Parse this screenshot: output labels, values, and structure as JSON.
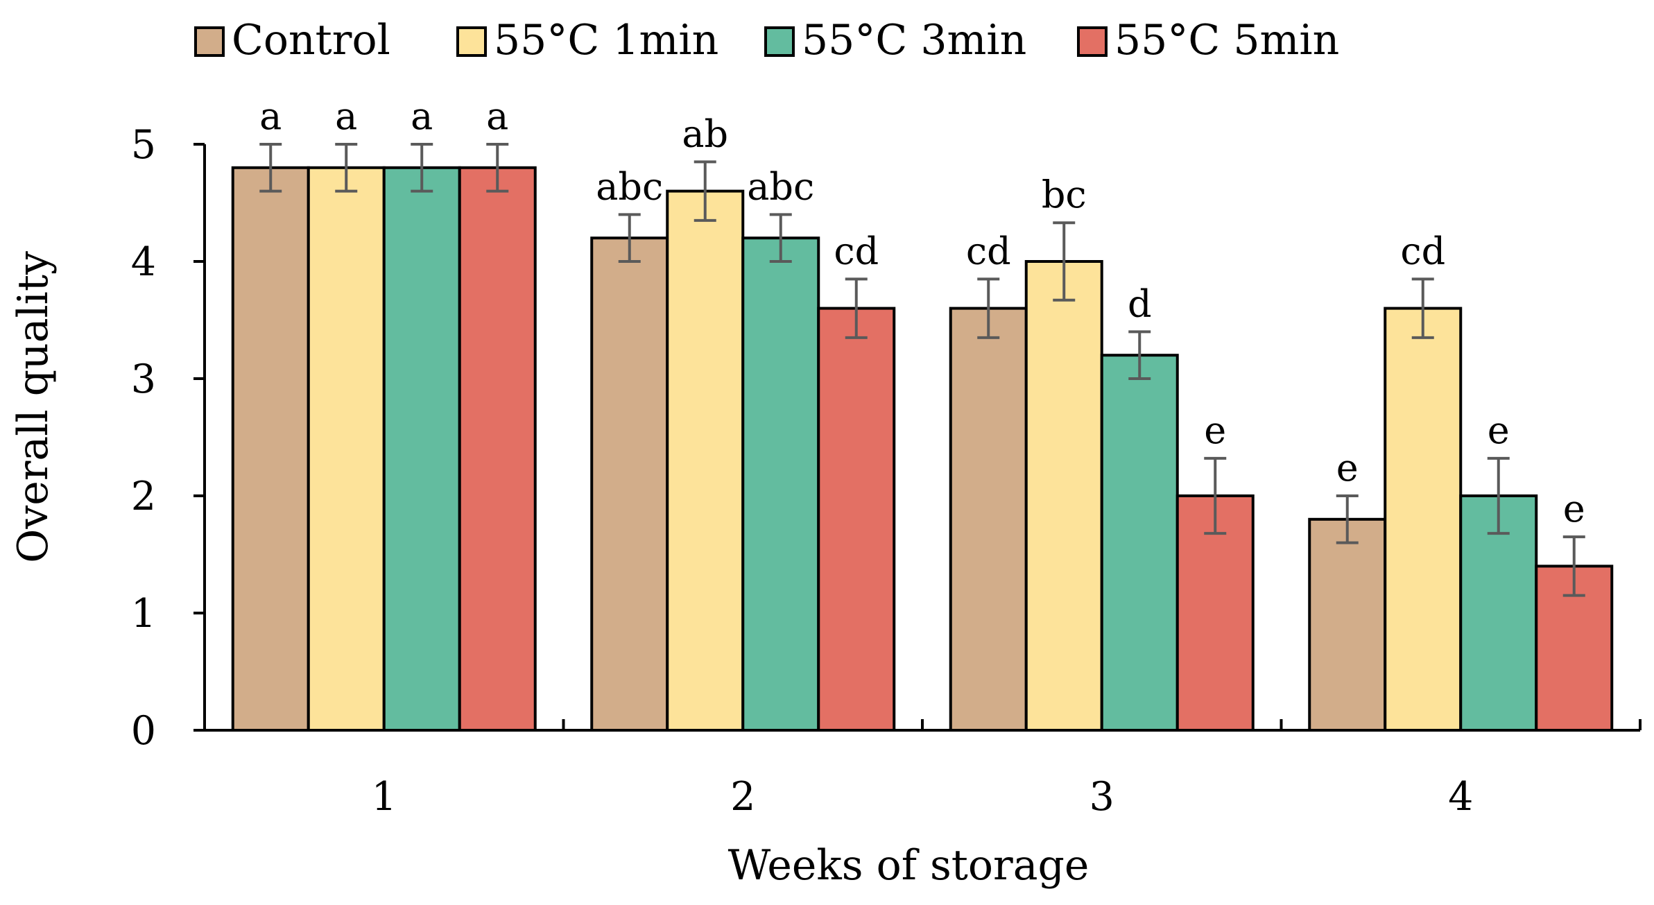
{
  "chart_data": {
    "type": "bar",
    "title": "",
    "xlabel": "Weeks of storage",
    "ylabel": "Overall quality",
    "categories": [
      "1",
      "2",
      "3",
      "4"
    ],
    "ylim": [
      0,
      5
    ],
    "yticks": [
      "0",
      "1",
      "2",
      "3",
      "4",
      "5"
    ],
    "legend_position": "top",
    "grid": false,
    "series": [
      {
        "name": "Control",
        "color": "#d2ad8a",
        "values": [
          4.8,
          4.2,
          3.6,
          1.8
        ],
        "errors": [
          0.2,
          0.2,
          0.25,
          0.2
        ],
        "labels": [
          "a",
          "abc",
          "cd",
          "e"
        ]
      },
      {
        "name": "55°C 1min",
        "color": "#fde39a",
        "values": [
          4.8,
          4.6,
          4.0,
          3.6
        ],
        "errors": [
          0.2,
          0.25,
          0.33,
          0.25
        ],
        "labels": [
          "a",
          "ab",
          "bc",
          "cd"
        ]
      },
      {
        "name": "55°C 3min",
        "color": "#63bc9f",
        "values": [
          4.8,
          4.2,
          3.2,
          2.0
        ],
        "errors": [
          0.2,
          0.2,
          0.2,
          0.32
        ],
        "labels": [
          "a",
          "abc",
          "d",
          "e"
        ]
      },
      {
        "name": "55°C 5min",
        "color": "#e37064",
        "values": [
          4.8,
          3.6,
          2.0,
          1.4
        ],
        "errors": [
          0.2,
          0.25,
          0.32,
          0.25
        ],
        "labels": [
          "a",
          "cd",
          "e",
          "e"
        ]
      }
    ]
  }
}
